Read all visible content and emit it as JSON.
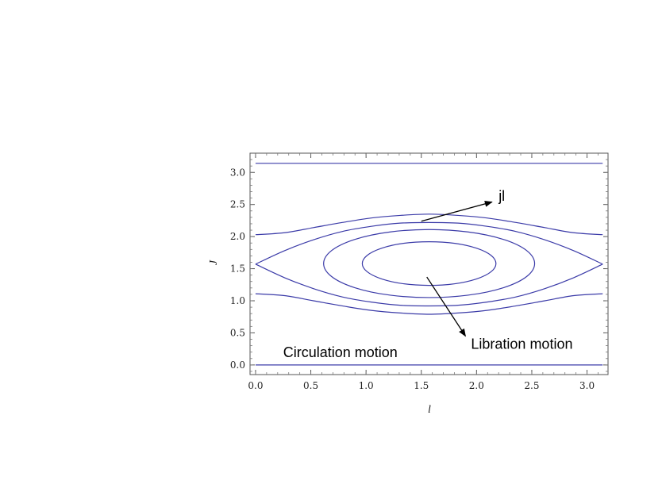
{
  "chart_data": {
    "type": "line",
    "title": "",
    "xlabel": "l",
    "ylabel": "J",
    "xlim": [
      -0.05,
      3.19
    ],
    "ylim": [
      -0.15,
      3.3
    ],
    "x_ticks": [
      0.0,
      0.5,
      1.0,
      1.5,
      2.0,
      2.5,
      3.0
    ],
    "x_tick_labels": [
      "0.0",
      "0.5",
      "1.0",
      "1.5",
      "2.0",
      "2.5",
      "3.0"
    ],
    "y_ticks": [
      0.0,
      0.5,
      1.0,
      1.5,
      2.0,
      2.5,
      3.0
    ],
    "y_tick_labels": [
      "0.0",
      "0.5",
      "1.0",
      "1.5",
      "2.0",
      "2.5",
      "3.0"
    ],
    "grid": false,
    "line_color": "#3b3ba8",
    "curves": [
      {
        "kind": "open",
        "x": [
          0.0,
          0.5236,
          1.0472,
          1.5708,
          2.0944,
          2.618,
          3.1416
        ],
        "y": [
          3.1416,
          3.1416,
          3.1416,
          3.1416,
          3.1416,
          3.1416,
          3.1416
        ]
      },
      {
        "kind": "open",
        "x": [
          0.0,
          0.5236,
          1.0472,
          1.5708,
          2.0944,
          2.618,
          3.1416
        ],
        "y": [
          0.0,
          0.0,
          0.0,
          0.0,
          0.0,
          0.0,
          0.0
        ]
      },
      {
        "kind": "open",
        "x": [
          0.0,
          0.2618,
          0.5236,
          0.7854,
          1.0472,
          1.309,
          1.5708,
          1.8326,
          2.0944,
          2.3562,
          2.618,
          2.8798,
          3.1416
        ],
        "y": [
          2.03,
          2.06,
          2.14,
          2.22,
          2.29,
          2.33,
          2.35,
          2.33,
          2.29,
          2.22,
          2.14,
          2.06,
          2.03
        ]
      },
      {
        "kind": "open",
        "x": [
          0.0,
          0.2618,
          0.5236,
          0.7854,
          1.0472,
          1.309,
          1.5708,
          1.8326,
          2.0944,
          2.3562,
          2.618,
          2.8798,
          3.1416
        ],
        "y": [
          1.11,
          1.08,
          1.0,
          0.92,
          0.85,
          0.81,
          0.79,
          0.81,
          0.85,
          0.92,
          1.0,
          1.08,
          1.11
        ]
      },
      {
        "kind": "open",
        "x": [
          0.0,
          0.2618,
          0.5236,
          0.7854,
          1.0472,
          1.309,
          1.5708,
          1.8326,
          2.0944,
          2.3562,
          2.618,
          2.8798,
          3.1416
        ],
        "y": [
          1.5708,
          1.78,
          1.95,
          2.08,
          2.16,
          2.21,
          2.22,
          2.21,
          2.16,
          2.08,
          1.95,
          1.78,
          1.5708
        ]
      },
      {
        "kind": "open",
        "x": [
          0.0,
          0.2618,
          0.5236,
          0.7854,
          1.0472,
          1.309,
          1.5708,
          1.8326,
          2.0944,
          2.3562,
          2.618,
          2.8798,
          3.1416
        ],
        "y": [
          1.5708,
          1.36,
          1.19,
          1.06,
          0.98,
          0.93,
          0.92,
          0.93,
          0.98,
          1.06,
          1.19,
          1.36,
          1.5708
        ]
      },
      {
        "kind": "ellipse",
        "cx": 1.5708,
        "cy": 1.58,
        "rx": 0.955,
        "ry": 0.53
      },
      {
        "kind": "ellipse",
        "cx": 1.5708,
        "cy": 1.58,
        "rx": 0.605,
        "ry": 0.34
      }
    ],
    "annotations": [
      {
        "text": "jl",
        "text_x": 2.2,
        "text_y": 2.56,
        "arrow_from": [
          1.5,
          2.24
        ],
        "arrow_to": [
          2.14,
          2.54
        ]
      },
      {
        "text": "Libration motion",
        "text_x": 1.95,
        "text_y": 0.25,
        "arrow_from": [
          1.55,
          1.37
        ],
        "arrow_to": [
          1.9,
          0.45
        ]
      },
      {
        "text": "Circulation motion",
        "text_x": 0.25,
        "text_y": 0.12
      }
    ]
  }
}
